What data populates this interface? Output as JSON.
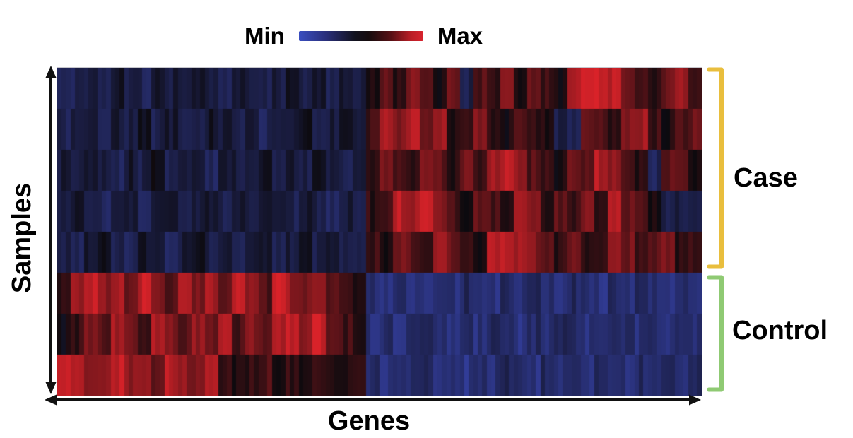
{
  "legend": {
    "min_label": "Min",
    "max_label": "Max",
    "gradient_stops": [
      "#3A4EC0",
      "#2A2F7A 22%",
      "#12121E 45%",
      "#160C0E 56%",
      "#571015 74%",
      "#B91E26 90%",
      "#D8232E"
    ]
  },
  "y_axis": {
    "label": "Samples"
  },
  "x_axis": {
    "label": "Genes"
  },
  "colors": {
    "arrow": "#111111",
    "case_bracket": "#E9BE3D",
    "control_bracket": "#8FCA73",
    "background": "#ffffff"
  },
  "chart_data": {
    "type": "heatmap",
    "title": "",
    "xlabel": "Genes",
    "ylabel": "Samples",
    "legend_position": "top-center",
    "colorbar": {
      "min_label": "Min",
      "max_label": "Max",
      "description": "diverging colormap: blue = Min, black = mid, red = Max"
    },
    "colormap": {
      "blue": "#3C4ABE",
      "black": "#0C0A0E",
      "red": "#E2232A"
    },
    "row_groups": [
      {
        "label": "Case",
        "n_samples": 5,
        "bracket_color": "#E9BE3D"
      },
      {
        "label": "Control",
        "n_samples": 3,
        "bracket_color": "#8FCA73"
      }
    ],
    "n_rows": 8,
    "n_cols": 48,
    "gene_block_boundary_col": 23,
    "value_scale": {
      "min": 0,
      "mid_black": 0.5,
      "max": 1
    },
    "pattern_summary": "Case samples (top 5 rows): low/blue in left gene block, high/red in right gene block. Control samples (bottom 3 rows): high/red in left gene block, low/blue in right gene block.",
    "values": [
      [
        0.34,
        0.3,
        0.38,
        0.33,
        0.42,
        0.36,
        0.31,
        0.44,
        0.37,
        0.32,
        0.4,
        0.35,
        0.29,
        0.43,
        0.38,
        0.31,
        0.36,
        0.45,
        0.33,
        0.39,
        0.3,
        0.41,
        0.35,
        0.52,
        0.68,
        0.55,
        0.75,
        0.62,
        0.5,
        0.7,
        0.34,
        0.66,
        0.58,
        0.78,
        0.54,
        0.72,
        0.6,
        0.52,
        0.88,
        0.93,
        0.97,
        0.9,
        0.74,
        0.62,
        0.55,
        0.7,
        0.82,
        0.62
      ],
      [
        0.31,
        0.36,
        0.42,
        0.3,
        0.38,
        0.34,
        0.45,
        0.32,
        0.39,
        0.36,
        0.3,
        0.43,
        0.37,
        0.33,
        0.41,
        0.29,
        0.38,
        0.35,
        0.44,
        0.31,
        0.37,
        0.42,
        0.34,
        0.6,
        0.85,
        0.78,
        0.88,
        0.7,
        0.82,
        0.55,
        0.62,
        0.75,
        0.58,
        0.52,
        0.68,
        0.6,
        0.55,
        0.35,
        0.32,
        0.72,
        0.64,
        0.58,
        0.78,
        0.85,
        0.6,
        0.52,
        0.66,
        0.72
      ],
      [
        0.38,
        0.32,
        0.44,
        0.36,
        0.3,
        0.41,
        0.34,
        0.46,
        0.31,
        0.39,
        0.35,
        0.29,
        0.42,
        0.37,
        0.33,
        0.45,
        0.3,
        0.38,
        0.34,
        0.43,
        0.36,
        0.31,
        0.4,
        0.55,
        0.72,
        0.62,
        0.58,
        0.8,
        0.68,
        0.54,
        0.75,
        0.6,
        0.85,
        0.9,
        0.82,
        0.66,
        0.58,
        0.52,
        0.74,
        0.68,
        0.88,
        0.78,
        0.62,
        0.56,
        0.3,
        0.68,
        0.74,
        0.55
      ],
      [
        0.33,
        0.4,
        0.35,
        0.29,
        0.43,
        0.37,
        0.31,
        0.38,
        0.45,
        0.32,
        0.36,
        0.42,
        0.3,
        0.39,
        0.34,
        0.44,
        0.37,
        0.31,
        0.41,
        0.35,
        0.29,
        0.38,
        0.33,
        0.58,
        0.66,
        0.9,
        0.86,
        0.92,
        0.8,
        0.62,
        0.55,
        0.7,
        0.64,
        0.58,
        0.85,
        0.75,
        0.52,
        0.68,
        0.6,
        0.78,
        0.55,
        0.88,
        0.7,
        0.62,
        0.52,
        0.33,
        0.36,
        0.36
      ],
      [
        0.36,
        0.31,
        0.39,
        0.44,
        0.33,
        0.29,
        0.42,
        0.35,
        0.3,
        0.38,
        0.46,
        0.34,
        0.4,
        0.32,
        0.37,
        0.43,
        0.3,
        0.36,
        0.45,
        0.33,
        0.39,
        0.31,
        0.37,
        0.62,
        0.55,
        0.75,
        0.68,
        0.58,
        0.82,
        0.72,
        0.6,
        0.52,
        0.9,
        0.94,
        0.85,
        0.78,
        0.66,
        0.58,
        0.7,
        0.54,
        0.62,
        0.86,
        0.74,
        0.58,
        0.68,
        0.78,
        0.55,
        0.62
      ],
      [
        0.55,
        0.82,
        0.9,
        0.78,
        0.86,
        0.72,
        0.92,
        0.8,
        0.68,
        0.88,
        0.75,
        0.84,
        0.7,
        0.9,
        0.78,
        0.66,
        0.94,
        0.82,
        0.74,
        0.86,
        0.7,
        0.62,
        0.58,
        0.24,
        0.2,
        0.27,
        0.22,
        0.18,
        0.25,
        0.21,
        0.28,
        0.23,
        0.19,
        0.26,
        0.22,
        0.29,
        0.24,
        0.2,
        0.27,
        0.23,
        0.18,
        0.25,
        0.21,
        0.28,
        0.24,
        0.2,
        0.26,
        0.22
      ],
      [
        0.5,
        0.58,
        0.78,
        0.68,
        0.84,
        0.74,
        0.62,
        0.88,
        0.76,
        0.66,
        0.82,
        0.72,
        0.9,
        0.64,
        0.78,
        0.7,
        0.86,
        0.92,
        0.8,
        0.94,
        0.72,
        0.62,
        0.55,
        0.21,
        0.26,
        0.19,
        0.24,
        0.28,
        0.22,
        0.17,
        0.25,
        0.2,
        0.27,
        0.23,
        0.18,
        0.26,
        0.21,
        0.28,
        0.24,
        0.19,
        0.25,
        0.22,
        0.27,
        0.2,
        0.24,
        0.18,
        0.26,
        0.23
      ],
      [
        0.97,
        0.88,
        0.76,
        0.84,
        0.92,
        0.78,
        0.86,
        0.72,
        0.9,
        0.8,
        0.74,
        0.88,
        0.62,
        0.55,
        0.58,
        0.66,
        0.52,
        0.6,
        0.56,
        0.64,
        0.58,
        0.54,
        0.62,
        0.25,
        0.19,
        0.27,
        0.22,
        0.28,
        0.2,
        0.24,
        0.17,
        0.26,
        0.21,
        0.29,
        0.23,
        0.18,
        0.27,
        0.22,
        0.25,
        0.19,
        0.28,
        0.24,
        0.2,
        0.26,
        0.22,
        0.27,
        0.18,
        0.3
      ]
    ]
  }
}
